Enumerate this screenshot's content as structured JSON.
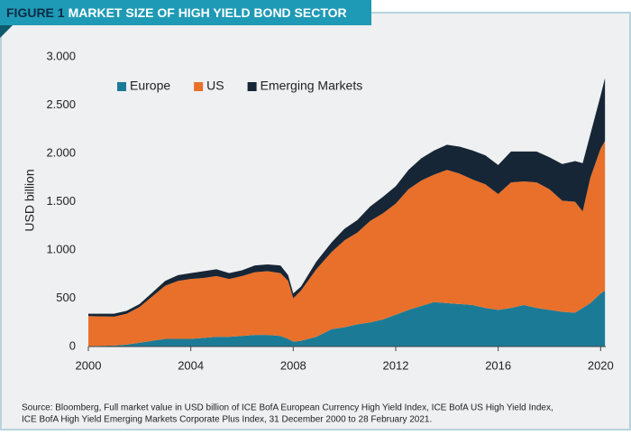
{
  "chart_data": {
    "type": "stacked_area",
    "figure_label": "FIGURE 1",
    "title": "MARKET SIZE OF HIGH YIELD BOND SECTOR",
    "y_label": "USD billion",
    "source": [
      "Source: Bloomberg, Full market value in USD billion of ICE BofA European Currency High Yield Index, ICE BofA US High Yield Index,",
      "ICE BofA High Yield Emerging Markets Corporate Plus Index, 31 December 2000 to 28 February 2021."
    ],
    "legend": "top-left",
    "x": [
      2000,
      2001,
      2001.5,
      2002,
      2002.5,
      2003,
      2003.5,
      2004,
      2004.5,
      2005,
      2005.5,
      2006,
      2006.5,
      2007,
      2007.5,
      2007.8,
      2008,
      2008.3,
      2008.9,
      2009.5,
      2010,
      2010.5,
      2011,
      2011.5,
      2012,
      2012.5,
      2013,
      2013.5,
      2014,
      2014.5,
      2015,
      2015.5,
      2016,
      2016.5,
      2017,
      2017.5,
      2018,
      2018.5,
      2019,
      2019.3,
      2019.6,
      2020,
      2020.17
    ],
    "series": [
      {
        "name": "Europe",
        "color": "#1b7b97",
        "values": [
          5,
          10,
          20,
          40,
          60,
          80,
          80,
          80,
          90,
          100,
          100,
          110,
          120,
          120,
          110,
          80,
          50,
          60,
          100,
          180,
          200,
          230,
          250,
          280,
          330,
          380,
          420,
          460,
          450,
          440,
          430,
          400,
          380,
          400,
          430,
          400,
          380,
          360,
          350,
          400,
          450,
          550,
          580
        ]
      },
      {
        "name": "US",
        "color": "#e8702a",
        "values": [
          310,
          300,
          320,
          370,
          460,
          550,
          600,
          620,
          620,
          630,
          600,
          620,
          650,
          660,
          650,
          600,
          450,
          520,
          700,
          800,
          900,
          950,
          1050,
          1100,
          1150,
          1250,
          1300,
          1320,
          1380,
          1350,
          1300,
          1280,
          1200,
          1300,
          1280,
          1300,
          1250,
          1150,
          1150,
          1000,
          1300,
          1500,
          1550
        ]
      },
      {
        "name": "Emerging Markets",
        "color": "#172636",
        "values": [
          25,
          30,
          30,
          30,
          40,
          50,
          60,
          60,
          70,
          70,
          60,
          60,
          70,
          70,
          80,
          60,
          50,
          40,
          80,
          100,
          120,
          130,
          150,
          170,
          180,
          200,
          230,
          250,
          260,
          280,
          300,
          300,
          300,
          320,
          310,
          320,
          330,
          380,
          420,
          500,
          450,
          550,
          650
        ]
      }
    ],
    "xlim": [
      2000,
      2020.2
    ],
    "xticks": [
      2000,
      2004,
      2008,
      2012,
      2016,
      2020
    ],
    "ylim": [
      0,
      3000
    ],
    "yticks": [
      0,
      500,
      {
        "value": 1000,
        "label": "1.000"
      },
      {
        "value": 1500,
        "label": "1.500"
      },
      {
        "value": 2000,
        "label": "2.000"
      },
      {
        "value": 2500,
        "label": "2.500"
      },
      {
        "value": 3000,
        "label": "3.000"
      }
    ]
  }
}
